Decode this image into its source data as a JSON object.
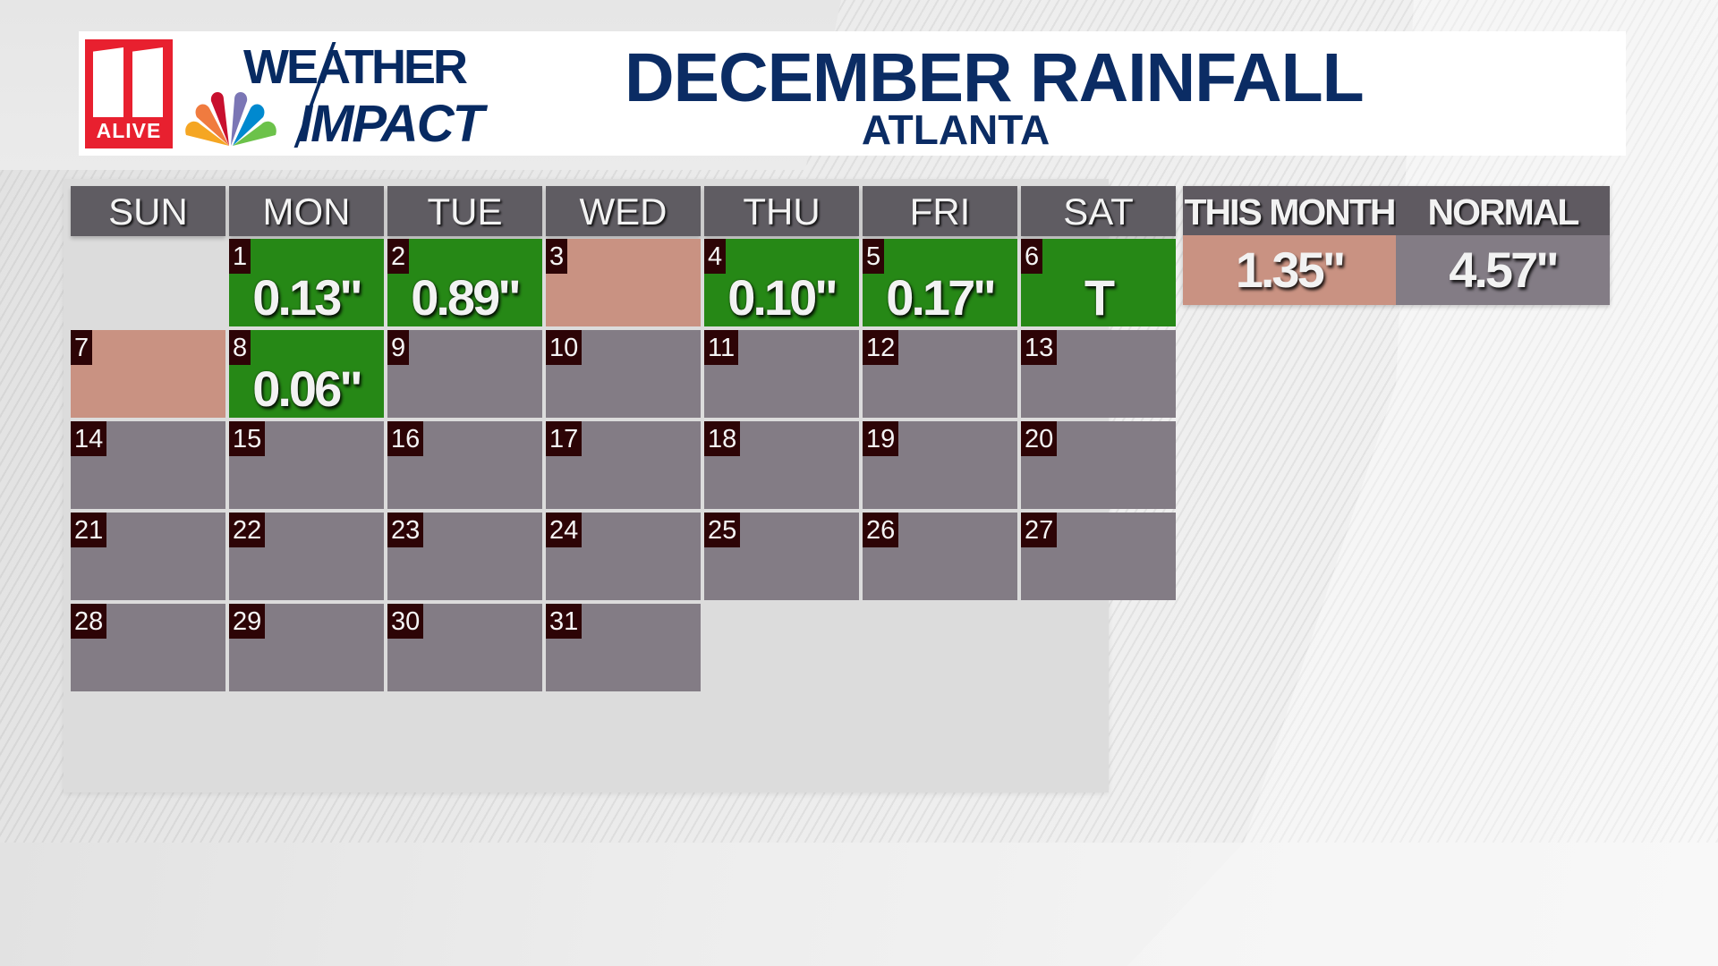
{
  "header": {
    "station_logo_text": "ALIVE",
    "brand_line1": "WEATHER",
    "brand_line2": "IMPACT",
    "title": "DECEMBER RAINFALL",
    "subtitle": "ATLANTA"
  },
  "colors": {
    "rain_day": "#268816",
    "dry_day": "#c99282",
    "future_day": "#837c85",
    "header_gray": "#5f5c62",
    "date_badge": "#2d0406",
    "title_navy": "#0b2c64"
  },
  "calendar": {
    "weekdays": [
      "SUN",
      "MON",
      "TUE",
      "WED",
      "THU",
      "FRI",
      "SAT"
    ],
    "days": [
      {
        "day": "1",
        "amount": "0.13\"",
        "status": "rain"
      },
      {
        "day": "2",
        "amount": "0.89\"",
        "status": "rain"
      },
      {
        "day": "3",
        "amount": "",
        "status": "dry"
      },
      {
        "day": "4",
        "amount": "0.10\"",
        "status": "rain"
      },
      {
        "day": "5",
        "amount": "0.17\"",
        "status": "rain"
      },
      {
        "day": "6",
        "amount": "T",
        "status": "rain"
      },
      {
        "day": "7",
        "amount": "",
        "status": "dry"
      },
      {
        "day": "8",
        "amount": "0.06\"",
        "status": "rain"
      },
      {
        "day": "9",
        "amount": "",
        "status": "future"
      },
      {
        "day": "10",
        "amount": "",
        "status": "future"
      },
      {
        "day": "11",
        "amount": "",
        "status": "future"
      },
      {
        "day": "12",
        "amount": "",
        "status": "future"
      },
      {
        "day": "13",
        "amount": "",
        "status": "future"
      },
      {
        "day": "14",
        "amount": "",
        "status": "future"
      },
      {
        "day": "15",
        "amount": "",
        "status": "future"
      },
      {
        "day": "16",
        "amount": "",
        "status": "future"
      },
      {
        "day": "17",
        "amount": "",
        "status": "future"
      },
      {
        "day": "18",
        "amount": "",
        "status": "future"
      },
      {
        "day": "19",
        "amount": "",
        "status": "future"
      },
      {
        "day": "20",
        "amount": "",
        "status": "future"
      },
      {
        "day": "21",
        "amount": "",
        "status": "future"
      },
      {
        "day": "22",
        "amount": "",
        "status": "future"
      },
      {
        "day": "23",
        "amount": "",
        "status": "future"
      },
      {
        "day": "24",
        "amount": "",
        "status": "future"
      },
      {
        "day": "25",
        "amount": "",
        "status": "future"
      },
      {
        "day": "26",
        "amount": "",
        "status": "future"
      },
      {
        "day": "27",
        "amount": "",
        "status": "future"
      },
      {
        "day": "28",
        "amount": "",
        "status": "future"
      },
      {
        "day": "29",
        "amount": "",
        "status": "future"
      },
      {
        "day": "30",
        "amount": "",
        "status": "future"
      },
      {
        "day": "31",
        "amount": "",
        "status": "future"
      }
    ],
    "first_weekday_index": 1
  },
  "summary": {
    "this_month_label": "THIS MONTH",
    "this_month_value": "1.35\"",
    "normal_label": "NORMAL",
    "normal_value": "4.57\""
  }
}
